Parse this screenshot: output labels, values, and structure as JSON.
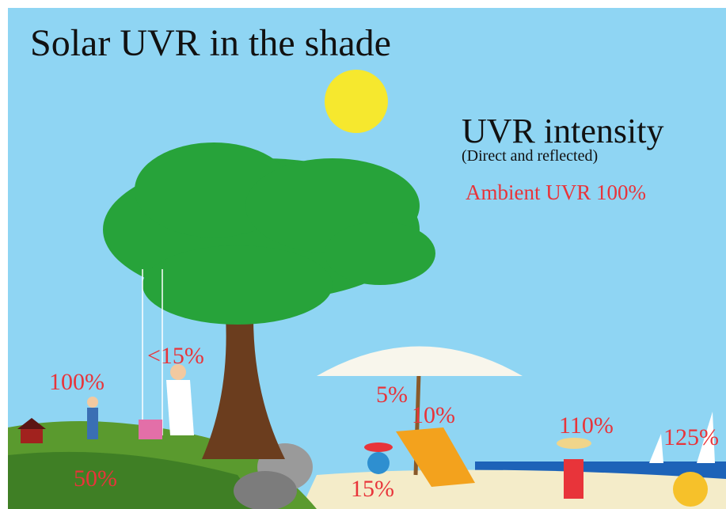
{
  "title": "Solar UVR in the shade",
  "legend": {
    "heading": "UVR intensity",
    "subheading": "(Direct and reflected)",
    "ambient": "Ambient UVR 100%"
  },
  "labels": [
    "100%",
    "50%",
    "<15%",
    "5%",
    "10%",
    "15%",
    "110%",
    "125%"
  ]
}
